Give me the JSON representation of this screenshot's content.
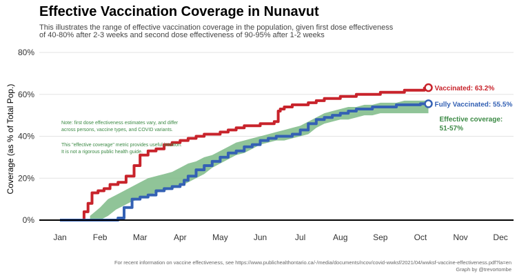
{
  "header": {
    "title": "Effective Vaccination Coverage in Nunavut",
    "subtitle_line1": "This illustrates the range of effective vaccination coverage in the population, given first dose effectiveness",
    "subtitle_line2": "of 40-80% after 2-3 weeks and second dose effectiveness of 90-95% after 1-2 weeks"
  },
  "footer": {
    "line1": "For recent information on vaccine effectiveness, see https://www.publichealthontario.ca/-/media/documents/ncov/covid-wwksf/2021/04/wwksf-vaccine-effectiveness.pdf?la=en",
    "line2": "Graph by @trevortombe"
  },
  "note": {
    "line1": "Note: first dose effectiveness estimates vary, and differ",
    "line2": "across persons, vaccine types, and COVID variants.",
    "line3": "This \"effective coverage\" metric provides useful intuition.",
    "line4": "It is not a rigorous public health guide."
  },
  "colors": {
    "vaccinated": "#c8232b",
    "fully_vaccinated": "#3461b4",
    "effective_band": "#7dba86",
    "effective_text": "#3c8a45",
    "grid": "#e3e3e3",
    "axis_text": "#333333"
  },
  "chart_data": {
    "type": "line",
    "title": "Effective Vaccination Coverage in Nunavut",
    "xlabel": "",
    "ylabel": "Coverage (as % of Total Pop.)",
    "x_ticks": [
      "Jan",
      "Feb",
      "Mar",
      "Apr",
      "May",
      "Jun",
      "Jul",
      "Aug",
      "Sep",
      "Oct",
      "Nov",
      "Dec"
    ],
    "y_ticks": [
      "0%",
      "20%",
      "40%",
      "60%",
      "80%"
    ],
    "ylim": [
      0,
      80
    ],
    "x_unit": "month (1.0 = Jan 1)",
    "grid": true,
    "series": [
      {
        "name": "Vaccinated",
        "label": "Vaccinated: 63.2%",
        "end_value": 63.2,
        "x": [
          1.0,
          1.25,
          1.45,
          1.6,
          1.7,
          1.8,
          1.95,
          2.1,
          2.25,
          2.45,
          2.65,
          2.85,
          3.0,
          3.2,
          3.4,
          3.6,
          3.8,
          4.0,
          4.2,
          4.4,
          4.6,
          4.8,
          5.0,
          5.2,
          5.4,
          5.6,
          5.8,
          6.0,
          6.2,
          6.35,
          6.45,
          6.5,
          6.6,
          6.8,
          7.0,
          7.2,
          7.4,
          7.6,
          7.8,
          8.0,
          8.2,
          8.4,
          8.6,
          8.8,
          9.0,
          9.2,
          9.4,
          9.6,
          9.8,
          10.0,
          10.1,
          10.2
        ],
        "y": [
          0,
          0,
          0,
          4,
          8,
          13,
          14,
          15,
          17,
          18,
          21,
          26,
          31,
          33,
          34,
          36,
          37,
          38,
          39,
          40,
          41,
          41,
          42,
          43,
          44,
          45,
          45,
          46,
          46,
          47,
          52,
          53,
          54,
          55,
          55,
          56,
          57,
          58,
          58,
          59,
          59,
          60,
          60,
          60,
          61,
          61,
          61,
          62,
          62,
          62,
          63,
          63.2
        ]
      },
      {
        "name": "Fully Vaccinated",
        "label": "Fully Vaccinated: 55.5%",
        "end_value": 55.5,
        "x": [
          1.0,
          1.5,
          2.0,
          2.3,
          2.4,
          2.45,
          2.6,
          2.8,
          3.0,
          3.2,
          3.4,
          3.6,
          3.8,
          4.0,
          4.1,
          4.2,
          4.4,
          4.6,
          4.8,
          5.0,
          5.2,
          5.4,
          5.6,
          5.8,
          6.0,
          6.2,
          6.4,
          6.6,
          6.8,
          7.0,
          7.2,
          7.4,
          7.6,
          7.8,
          8.0,
          8.2,
          8.4,
          8.6,
          8.8,
          9.0,
          9.2,
          9.4,
          9.6,
          9.8,
          10.0,
          10.2
        ],
        "y": [
          0,
          0,
          0,
          0,
          0,
          1,
          6,
          10,
          11,
          12,
          14,
          15,
          16,
          17,
          19,
          21,
          24,
          26,
          28,
          30,
          32,
          33,
          35,
          36,
          38,
          39,
          40,
          40,
          41,
          43,
          46,
          48,
          49,
          50,
          51,
          52,
          53,
          53,
          54,
          54,
          54,
          55,
          55,
          55,
          55.5,
          55.5
        ]
      },
      {
        "name": "Effective coverage",
        "label": "Effective coverage: 51-57%",
        "x": [
          1.75,
          2.0,
          2.2,
          2.4,
          2.6,
          2.8,
          3.0,
          3.2,
          3.4,
          3.6,
          3.8,
          4.0,
          4.2,
          4.4,
          4.6,
          4.8,
          5.0,
          5.2,
          5.4,
          5.6,
          5.8,
          6.0,
          6.2,
          6.4,
          6.6,
          6.8,
          7.0,
          7.2,
          7.4,
          7.6,
          7.8,
          8.0,
          8.2,
          8.4,
          8.6,
          8.8,
          9.0,
          9.2,
          9.4,
          9.6,
          9.8,
          10.0,
          10.2
        ],
        "low": [
          0,
          0,
          2,
          5,
          7,
          9,
          10,
          12,
          13,
          14,
          15,
          16,
          18,
          20,
          22,
          25,
          27,
          29,
          31,
          32,
          34,
          36,
          37,
          38,
          38,
          39,
          40,
          41,
          44,
          46,
          47,
          48,
          48,
          49,
          50,
          50,
          51,
          51,
          51,
          51,
          51,
          51,
          51
        ],
        "high": [
          2,
          6,
          10,
          12,
          14,
          16,
          18,
          20,
          21,
          22,
          23,
          25,
          27,
          28,
          30,
          31,
          33,
          35,
          37,
          38,
          39,
          40,
          41,
          42,
          43,
          44,
          45,
          47,
          49,
          51,
          52,
          53,
          54,
          54,
          55,
          55,
          56,
          56,
          56,
          57,
          57,
          57,
          57
        ]
      }
    ]
  }
}
